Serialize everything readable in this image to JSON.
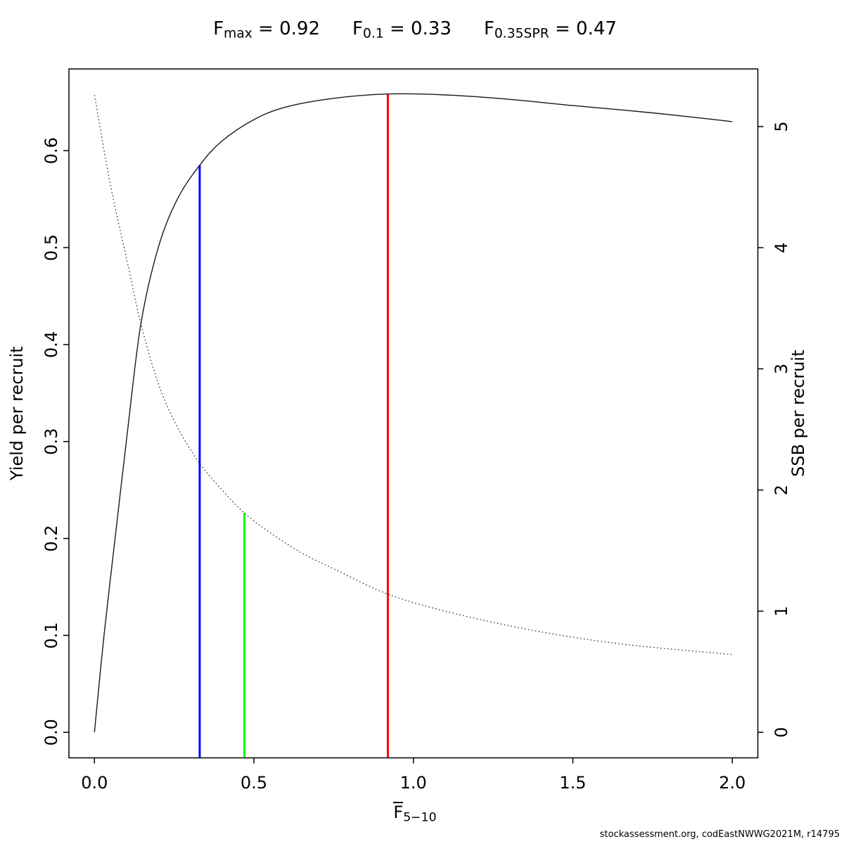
{
  "header": {
    "reference_points": [
      {
        "base": "F",
        "sub": "max",
        "eq": " = ",
        "value": "0.92"
      },
      {
        "base": "F",
        "sub": "0.1",
        "eq": " = ",
        "value": "0.33"
      },
      {
        "base": "F",
        "sub": "0.35SPR",
        "eq": " = ",
        "value": "0.47"
      }
    ]
  },
  "footer": {
    "credit": "stockassessment.org, codEastNWWG2021M, r14795"
  },
  "chart_data": {
    "type": "line",
    "title": "Fmax = 0.92   F0.1 = 0.33   F0.35SPR = 0.47",
    "x_axis": {
      "label_base": "F",
      "label_base_overline": true,
      "label_sub": "5−10",
      "range": [
        0,
        2
      ],
      "ticks": [
        "0.0",
        "0.5",
        "1.0",
        "1.5",
        "2.0"
      ],
      "tick_values": [
        0,
        0.5,
        1.0,
        1.5,
        2.0
      ]
    },
    "y_axis_left": {
      "label": "Yield per recruit",
      "range": [
        0,
        0.658
      ],
      "ticks": [
        "0.0",
        "0.1",
        "0.2",
        "0.3",
        "0.4",
        "0.5",
        "0.6"
      ],
      "tick_values": [
        0,
        0.1,
        0.2,
        0.3,
        0.4,
        0.5,
        0.6
      ]
    },
    "y_axis_right": {
      "label": "SSB per recruit",
      "range": [
        0,
        5.265
      ],
      "ticks": [
        "0",
        "1",
        "2",
        "3",
        "4",
        "5"
      ],
      "tick_values": [
        0,
        1,
        2,
        3,
        4,
        5
      ]
    },
    "grid": false,
    "series": [
      {
        "name": "yield-per-recruit-curve",
        "axis": "left",
        "line_style": "solid",
        "color": "#1a1a1a",
        "points": [
          [
            0,
            0
          ],
          [
            0.03,
            0.1
          ],
          [
            0.07,
            0.215
          ],
          [
            0.1,
            0.3
          ],
          [
            0.145,
            0.42
          ],
          [
            0.2,
            0.5
          ],
          [
            0.26,
            0.55
          ],
          [
            0.33,
            0.585
          ],
          [
            0.4,
            0.61
          ],
          [
            0.5,
            0.632
          ],
          [
            0.6,
            0.645
          ],
          [
            0.75,
            0.654
          ],
          [
            0.92,
            0.6585
          ],
          [
            1.1,
            0.6575
          ],
          [
            1.3,
            0.653
          ],
          [
            1.5,
            0.6465
          ],
          [
            1.75,
            0.639
          ],
          [
            2.0,
            0.63
          ]
        ]
      },
      {
        "name": "ssb-per-recruit-curve",
        "axis": "right",
        "line_style": "dotted",
        "color": "#222222",
        "points": [
          [
            0,
            5.26
          ],
          [
            0.05,
            4.52
          ],
          [
            0.1,
            3.92
          ],
          [
            0.145,
            3.38
          ],
          [
            0.2,
            2.88
          ],
          [
            0.26,
            2.52
          ],
          [
            0.33,
            2.22
          ],
          [
            0.4,
            2.0
          ],
          [
            0.47,
            1.81
          ],
          [
            0.55,
            1.65
          ],
          [
            0.65,
            1.48
          ],
          [
            0.75,
            1.35
          ],
          [
            0.92,
            1.14
          ],
          [
            1.1,
            1.0
          ],
          [
            1.3,
            0.88
          ],
          [
            1.5,
            0.785
          ],
          [
            1.7,
            0.715
          ],
          [
            2.0,
            0.642
          ]
        ]
      }
    ],
    "reference_lines": [
      {
        "name": "f01-line",
        "x": 0.33,
        "color": "#0000ff",
        "top_axis": "left",
        "top_value": 0.585
      },
      {
        "name": "f035spr-line",
        "x": 0.47,
        "color": "#00ff00",
        "top_axis": "right",
        "top_value": 1.81
      },
      {
        "name": "fmax-line",
        "x": 0.92,
        "color": "#ff0000",
        "top_axis": "left",
        "top_value": 0.6585
      }
    ],
    "reference_values": {
      "Fmax": 0.92,
      "F01": 0.33,
      "F035SPR": 0.47
    }
  }
}
